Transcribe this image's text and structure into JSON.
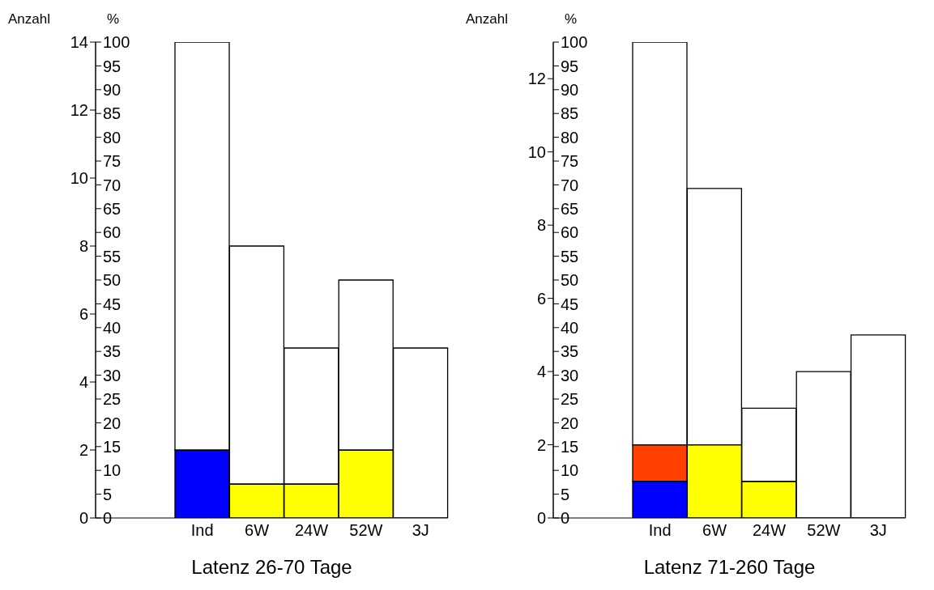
{
  "chart_data": [
    {
      "type": "bar",
      "stacked": true,
      "xlabel": "Latenz 26-70 Tage",
      "ylabel": "Anzahl",
      "y2label": "%",
      "categories": [
        "Ind",
        "6W",
        "24W",
        "52W",
        "3J"
      ],
      "series": [
        {
          "color": "#0000ff",
          "values": [
            2,
            null,
            null,
            null,
            null
          ]
        },
        {
          "color": "#ffff00",
          "values": [
            null,
            1,
            1,
            2,
            null
          ]
        },
        {
          "color": "#ffffff",
          "values": [
            12,
            7,
            4,
            5,
            5
          ]
        }
      ],
      "ylim": [
        0,
        14
      ],
      "yticks": [
        0,
        2,
        4,
        6,
        8,
        10,
        12,
        14
      ],
      "y2lim": [
        0,
        100
      ],
      "y2ticks": [
        0,
        5,
        10,
        15,
        20,
        25,
        30,
        35,
        40,
        45,
        50,
        55,
        60,
        65,
        70,
        75,
        80,
        85,
        90,
        95,
        100
      ],
      "grid": false,
      "legend": false
    },
    {
      "type": "bar",
      "stacked": true,
      "xlabel": "Latenz 71-260 Tage",
      "ylabel": "Anzahl",
      "y2label": "%",
      "categories": [
        "Ind",
        "6W",
        "24W",
        "52W",
        "3J"
      ],
      "series": [
        {
          "color": "#0000ff",
          "values": [
            1,
            null,
            null,
            null,
            null
          ]
        },
        {
          "color": "#ff4000",
          "values": [
            1,
            null,
            null,
            null,
            null
          ]
        },
        {
          "color": "#ffff00",
          "values": [
            null,
            2,
            1,
            null,
            null
          ]
        },
        {
          "color": "#ffffff",
          "values": [
            11,
            7,
            2,
            4,
            5
          ]
        }
      ],
      "ylim": [
        0,
        13
      ],
      "yticks": [
        0,
        2,
        4,
        6,
        8,
        10,
        12
      ],
      "y2lim": [
        0,
        100
      ],
      "y2ticks": [
        0,
        5,
        10,
        15,
        20,
        25,
        30,
        35,
        40,
        45,
        50,
        55,
        60,
        65,
        70,
        75,
        80,
        85,
        90,
        95,
        100
      ],
      "grid": false,
      "legend": false
    }
  ]
}
